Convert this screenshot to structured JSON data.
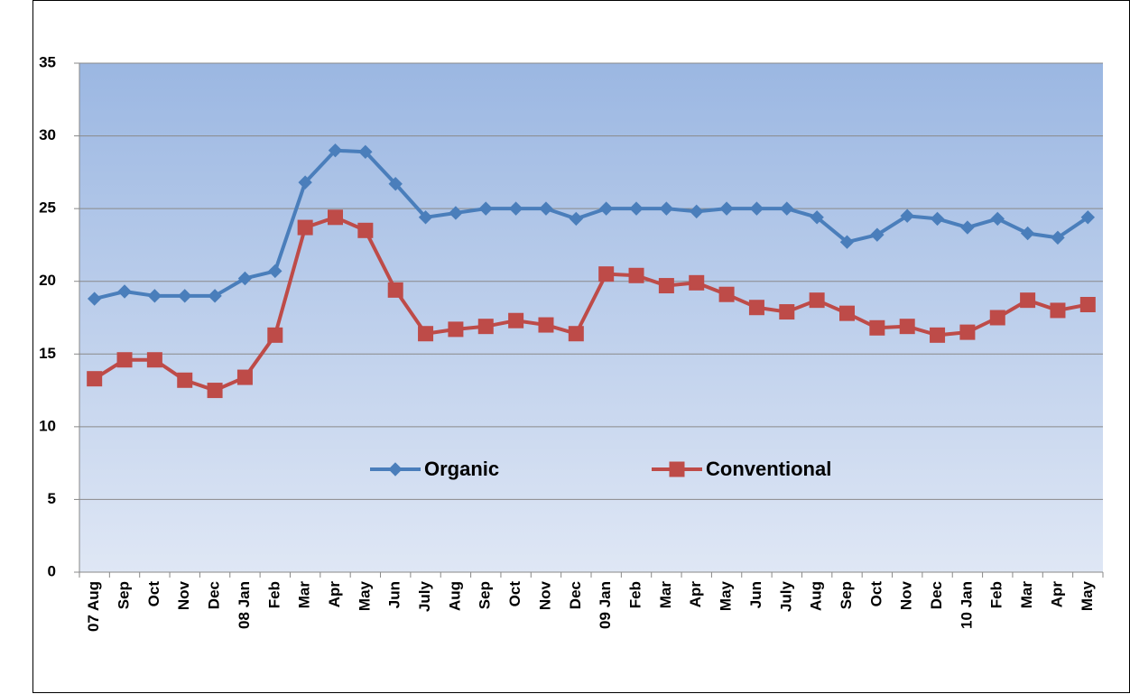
{
  "chart_data": {
    "type": "line",
    "categories": [
      "07 Aug",
      "Sep",
      "Oct",
      "Nov",
      "Dec",
      "08 Jan",
      "Feb",
      "Mar",
      "Apr",
      "May",
      "Jun",
      "July",
      "Aug",
      "Sep",
      "Oct",
      "Nov",
      "Dec",
      "09 Jan",
      "Feb",
      "Mar",
      "Apr",
      "May",
      "Jun",
      "July",
      "Aug",
      "Sep",
      "Oct",
      "Nov",
      "Dec",
      "10 Jan",
      "Feb",
      "Mar",
      "Apr",
      "May"
    ],
    "series": [
      {
        "name": "Organic",
        "color": "#4a7ebb",
        "marker": "diamond",
        "values": [
          18.8,
          19.3,
          19.0,
          19.0,
          19.0,
          20.2,
          20.7,
          26.8,
          29.0,
          28.9,
          26.7,
          24.4,
          24.7,
          25.0,
          25.0,
          25.0,
          24.3,
          25.0,
          25.0,
          25.0,
          24.8,
          25.0,
          25.0,
          25.0,
          24.4,
          22.7,
          23.2,
          24.5,
          24.3,
          23.7,
          24.3,
          23.3,
          23.0,
          24.4
        ]
      },
      {
        "name": "Conventional",
        "color": "#be4b48",
        "marker": "square",
        "values": [
          13.3,
          14.6,
          14.6,
          13.2,
          12.5,
          13.4,
          16.3,
          23.7,
          24.4,
          23.5,
          19.4,
          16.4,
          16.7,
          16.9,
          17.3,
          17.0,
          16.4,
          20.5,
          20.4,
          19.7,
          19.9,
          19.1,
          18.2,
          17.9,
          18.7,
          17.8,
          16.8,
          16.9,
          16.3,
          16.5,
          17.5,
          18.7,
          18.0,
          18.4
        ]
      }
    ],
    "ylim": [
      0,
      35
    ],
    "yticks": [
      0,
      5,
      10,
      15,
      20,
      25,
      30,
      35
    ],
    "grid": true
  }
}
